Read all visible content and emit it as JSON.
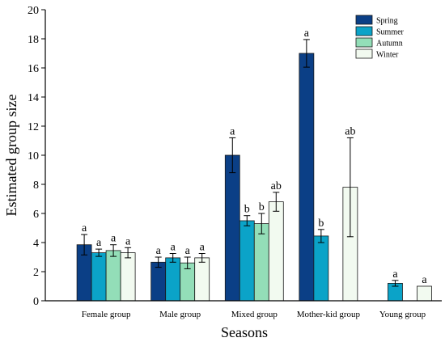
{
  "chart_data": {
    "type": "bar",
    "xlabel": "Seasons",
    "ylabel": "Estimated group size",
    "ylim": [
      0,
      20
    ],
    "yticks": [
      "0",
      "2",
      "4",
      "6",
      "8",
      "10",
      "12",
      "14",
      "16",
      "18",
      "20"
    ],
    "categories": [
      "Female group",
      "Male group",
      "Mixed group",
      "Mother-kid group",
      "Young group"
    ],
    "legend_position": "top-right",
    "series": [
      {
        "name": "Spring",
        "color": "#0b3f86",
        "values": [
          3.85,
          2.65,
          10.0,
          17.0,
          null
        ],
        "errors": [
          0.7,
          0.35,
          1.2,
          0.95,
          null
        ],
        "letters": [
          "a",
          "a",
          "a",
          "a",
          null
        ]
      },
      {
        "name": "Summer",
        "color": "#0ba3c8",
        "values": [
          3.3,
          2.95,
          5.5,
          4.45,
          1.2
        ],
        "errors": [
          0.25,
          0.3,
          0.35,
          0.45,
          0.2
        ],
        "letters": [
          "a",
          "a",
          "b",
          "b",
          "a"
        ]
      },
      {
        "name": "Autumn",
        "color": "#93deb8",
        "values": [
          3.45,
          2.6,
          5.3,
          null,
          null
        ],
        "errors": [
          0.4,
          0.4,
          0.7,
          null,
          null
        ],
        "letters": [
          "a",
          "a",
          "b",
          null,
          null
        ]
      },
      {
        "name": "Winter",
        "color": "#f2faf0",
        "values": [
          3.3,
          2.95,
          6.8,
          7.8,
          1.0
        ],
        "errors": [
          0.35,
          0.3,
          0.65,
          3.4,
          null
        ],
        "letters": [
          "a",
          "a",
          "ab",
          "ab",
          "a"
        ]
      }
    ]
  }
}
